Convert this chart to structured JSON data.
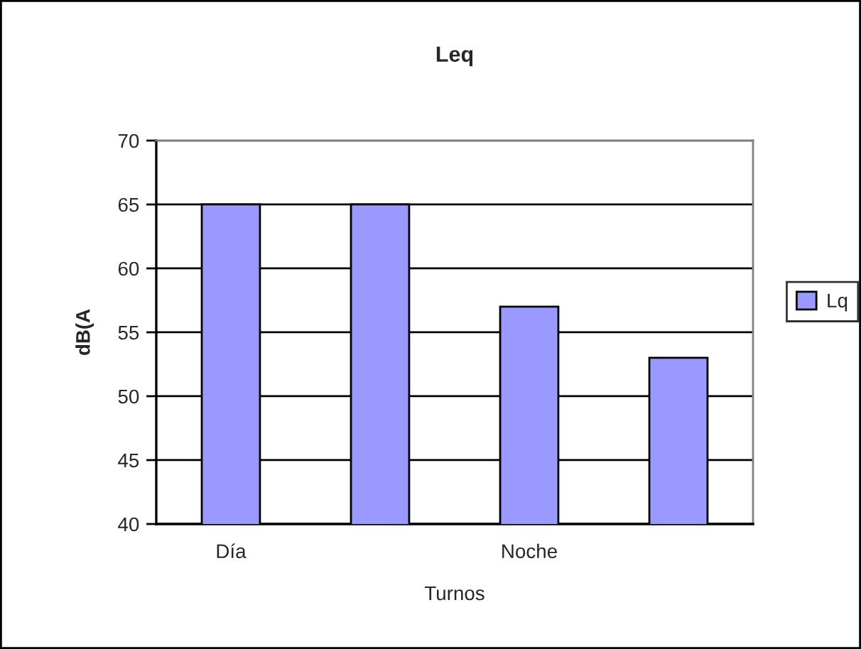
{
  "chart_data": {
    "type": "bar",
    "title": "Leq",
    "xlabel": "Turnos",
    "ylabel": "dB(A",
    "categories": [
      "Día",
      null,
      "Noche",
      null
    ],
    "series": [
      {
        "name": "Lq",
        "color": "#9999ff",
        "values": [
          65,
          65,
          57,
          53
        ]
      }
    ],
    "ylim": [
      40,
      70
    ],
    "yticks": [
      40,
      45,
      50,
      55,
      60,
      65,
      70
    ],
    "grid": "y",
    "legend": "right"
  }
}
